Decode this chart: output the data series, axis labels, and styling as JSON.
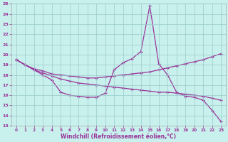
{
  "xlabel": "Windchill (Refroidissement éolien,°C)",
  "xlim_min": -0.5,
  "xlim_max": 23.5,
  "ylim_min": 13,
  "ylim_max": 25,
  "yticks": [
    13,
    14,
    15,
    16,
    17,
    18,
    19,
    20,
    21,
    22,
    23,
    24,
    25
  ],
  "xticks": [
    0,
    1,
    2,
    3,
    4,
    5,
    6,
    7,
    8,
    9,
    10,
    11,
    12,
    13,
    14,
    15,
    16,
    17,
    18,
    19,
    20,
    21,
    22,
    23
  ],
  "line_color": "#993399",
  "bg_color": "#c8f0ec",
  "grid_color": "#99cccc",
  "series1": [
    19.5,
    19.0,
    18.6,
    18.4,
    18.1,
    18.0,
    17.9,
    17.8,
    17.7,
    17.7,
    17.8,
    17.9,
    18.0,
    18.1,
    18.2,
    18.3,
    18.5,
    18.7,
    18.9,
    19.1,
    19.3,
    19.5,
    19.8,
    20.1
  ],
  "series2": [
    19.5,
    19.0,
    18.5,
    18.2,
    17.9,
    17.6,
    17.4,
    17.2,
    17.1,
    17.0,
    16.9,
    16.8,
    16.7,
    16.6,
    16.5,
    16.4,
    16.3,
    16.3,
    16.2,
    16.1,
    16.0,
    15.9,
    15.7,
    15.5
  ],
  "series3": [
    19.5,
    19.0,
    18.5,
    18.0,
    17.5,
    16.3,
    16.0,
    15.9,
    15.8,
    15.8,
    16.2,
    18.5,
    19.2,
    19.6,
    20.3,
    24.8,
    19.1,
    18.0,
    16.3,
    15.9,
    15.8,
    15.5,
    14.5,
    13.4
  ]
}
